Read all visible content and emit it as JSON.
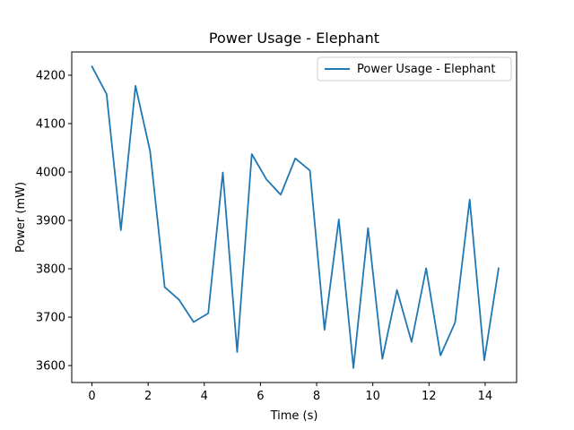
{
  "chart_data": {
    "type": "line",
    "title": "Power Usage - Elephant",
    "xlabel": "Time (s)",
    "ylabel": "Power (mW)",
    "xlim": [
      -0.72,
      15.12
    ],
    "ylim": [
      3565,
      4248
    ],
    "xticks": [
      0,
      2,
      4,
      6,
      8,
      10,
      12,
      14
    ],
    "yticks": [
      3600,
      3700,
      3800,
      3900,
      4000,
      4100,
      4200
    ],
    "legend_position": "top-right",
    "grid": false,
    "series": [
      {
        "name": "Power Usage - Elephant",
        "color": "#1f77b4",
        "x": [
          0.0,
          0.52,
          1.03,
          1.55,
          2.07,
          2.59,
          3.1,
          3.62,
          4.14,
          4.66,
          5.17,
          5.69,
          6.21,
          6.72,
          7.24,
          7.76,
          8.28,
          8.79,
          9.31,
          9.83,
          10.34,
          10.86,
          11.38,
          11.9,
          12.41,
          12.93,
          13.45,
          13.97,
          14.48
        ],
        "values": [
          4218,
          4161,
          3880,
          4178,
          4043,
          3762,
          3736,
          3690,
          3708,
          3999,
          3628,
          4037,
          3985,
          3953,
          4028,
          4003,
          3674,
          3902,
          3595,
          3884,
          3614,
          3756,
          3649,
          3801,
          3621,
          3689,
          3943,
          3611,
          3801
        ]
      }
    ]
  }
}
